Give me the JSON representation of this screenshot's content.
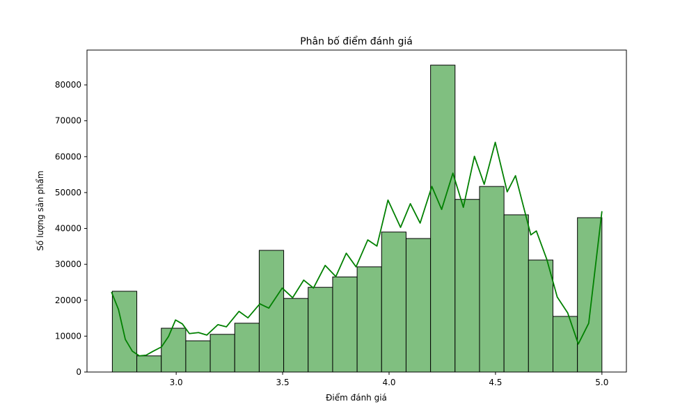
{
  "chart_data": {
    "type": "histogram",
    "title": "Phân bố điểm đánh giá",
    "x_label": "Điểm đánh giá",
    "y_label": "Số lượng sản phẩm",
    "bins": [
      2.7,
      2.815,
      2.93,
      3.045,
      3.16,
      3.275,
      3.39,
      3.505,
      3.62,
      3.735,
      3.85,
      3.965,
      4.08,
      4.195,
      4.31,
      4.425,
      4.54,
      4.655,
      4.77,
      4.885,
      5.0
    ],
    "counts": [
      22500,
      4500,
      12200,
      8700,
      10500,
      13600,
      33900,
      20500,
      23600,
      26500,
      29300,
      39000,
      37200,
      85500,
      48100,
      51700,
      43800,
      31200,
      15500,
      43000
    ],
    "color": "#80bf80",
    "edge_color": "#000000",
    "kde": {
      "color": "#008000",
      "x": [
        2.696,
        2.729,
        2.761,
        2.794,
        2.827,
        2.859,
        2.892,
        2.931,
        2.964,
        2.997,
        3.029,
        3.062,
        3.105,
        3.144,
        3.196,
        3.236,
        3.295,
        3.337,
        3.393,
        3.435,
        3.498,
        3.547,
        3.599,
        3.645,
        3.7,
        3.75,
        3.799,
        3.845,
        3.9,
        3.943,
        3.995,
        4.054,
        4.1,
        4.146,
        4.201,
        4.247,
        4.3,
        4.349,
        4.401,
        4.447,
        4.499,
        4.555,
        4.594,
        4.666,
        4.692,
        4.741,
        4.79,
        4.839,
        4.889,
        4.938,
        5.0
      ],
      "values": [
        22300,
        17400,
        9100,
        5800,
        4500,
        4700,
        5800,
        7000,
        9900,
        14500,
        13400,
        10700,
        11000,
        10300,
        13200,
        12600,
        16900,
        15100,
        19000,
        17800,
        23400,
        20700,
        25600,
        23400,
        29700,
        26600,
        33100,
        29300,
        36800,
        35100,
        47900,
        40300,
        46900,
        41500,
        51700,
        45300,
        55400,
        45900,
        60100,
        52300,
        64000,
        50200,
        54700,
        38200,
        39300,
        31400,
        20900,
        16500,
        7800,
        13600,
        44800
      ]
    },
    "xlim": [
      2.581,
      5.115
    ],
    "ylim": [
      0,
      89700
    ],
    "xticks": [
      {
        "value": 3.0,
        "label": "3.0"
      },
      {
        "value": 3.5,
        "label": "3.5"
      },
      {
        "value": 4.0,
        "label": "4.0"
      },
      {
        "value": 4.5,
        "label": "4.5"
      },
      {
        "value": 5.0,
        "label": "5.0"
      }
    ],
    "yticks": [
      0,
      10000,
      20000,
      30000,
      40000,
      50000,
      60000,
      70000,
      80000
    ]
  }
}
